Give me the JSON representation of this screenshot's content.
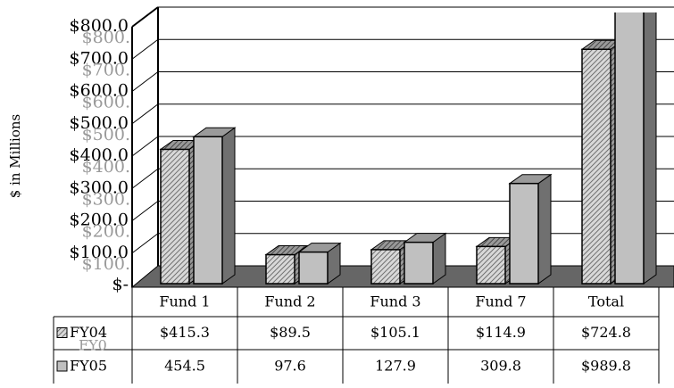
{
  "chart_data": {
    "type": "bar3d",
    "y_label": "$ in Millions",
    "categories": [
      "Fund 1",
      "Fund 2",
      "Fund 3",
      "Fund 7",
      "Total"
    ],
    "series": [
      {
        "name": "FY04",
        "color": "#a8a8a8",
        "pattern": "hatch",
        "values": [
          415.3,
          89.5,
          105.1,
          114.9,
          724.8
        ],
        "value_labels": [
          "$415.3",
          "$89.5",
          "$105.1",
          "$114.9",
          "$724.8"
        ]
      },
      {
        "name": "FY05",
        "color": "#c0c0c0",
        "pattern": "solid",
        "values": [
          454.5,
          97.6,
          127.9,
          309.8,
          989.8
        ],
        "value_labels": [
          "454.5",
          "97.6",
          "127.9",
          "309.8",
          "$989.8"
        ]
      }
    ],
    "ylim": [
      0,
      800
    ],
    "yticks": [
      {
        "value": 0,
        "label": "$-"
      },
      {
        "value": 100,
        "label": "$100.0"
      },
      {
        "value": 200,
        "label": "$200.0"
      },
      {
        "value": 300,
        "label": "$300.0"
      },
      {
        "value": 400,
        "label": "$400.0"
      },
      {
        "value": 500,
        "label": "$500.0"
      },
      {
        "value": 600,
        "label": "$600.0"
      },
      {
        "value": 700,
        "label": "$700.0"
      },
      {
        "value": 800,
        "label": "$800.0"
      }
    ],
    "ghost_ytick_labels": [
      "$100.",
      "$200.",
      "$300.",
      "$400.",
      "$500.",
      "$600.",
      "$700.",
      "$800."
    ],
    "ghost_legend_label": "FY0",
    "grid": true,
    "data_table": true
  }
}
